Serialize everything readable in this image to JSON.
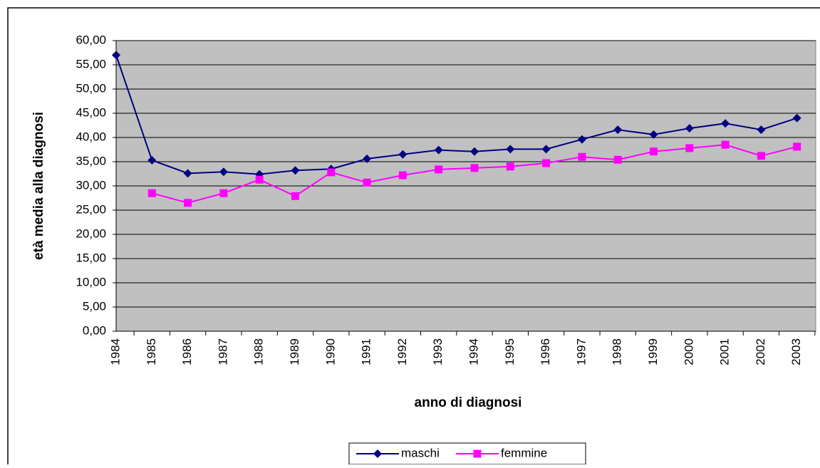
{
  "chart_data": {
    "type": "line",
    "y_label": "età media alla diagnosi",
    "x_label": "anno di diagnosi",
    "categories": [
      "1984",
      "1985",
      "1986",
      "1987",
      "1988",
      "1989",
      "1990",
      "1991",
      "1992",
      "1993",
      "1994",
      "1995",
      "1996",
      "1997",
      "1998",
      "1999",
      "2000",
      "2001",
      "2002",
      "2003"
    ],
    "series": [
      {
        "name": "maschi",
        "color": "#000080",
        "marker": "diamond",
        "values": [
          57.0,
          35.3,
          32.6,
          32.9,
          32.4,
          33.2,
          33.5,
          35.6,
          36.5,
          37.4,
          37.1,
          37.6,
          37.6,
          39.6,
          41.6,
          40.6,
          41.9,
          42.9,
          41.6,
          44.0
        ]
      },
      {
        "name": "femmine",
        "color": "#ff00ff",
        "marker": "square",
        "values": [
          null,
          28.5,
          26.5,
          28.5,
          31.3,
          27.9,
          32.8,
          30.7,
          32.2,
          33.4,
          33.7,
          34.0,
          34.7,
          36.0,
          35.4,
          37.1,
          37.8,
          38.5,
          36.2,
          38.1
        ]
      }
    ],
    "ylim": [
      0,
      60
    ],
    "yticks": [
      {
        "value": 0,
        "label": "0,00"
      },
      {
        "value": 5,
        "label": "5,00"
      },
      {
        "value": 10,
        "label": "10,00"
      },
      {
        "value": 15,
        "label": "15,00"
      },
      {
        "value": 20,
        "label": "20,00"
      },
      {
        "value": 25,
        "label": "25,00"
      },
      {
        "value": 30,
        "label": "30,00"
      },
      {
        "value": 35,
        "label": "35,00"
      },
      {
        "value": 40,
        "label": "40,00"
      },
      {
        "value": 45,
        "label": "45,00"
      },
      {
        "value": 50,
        "label": "50,00"
      },
      {
        "value": 55,
        "label": "55,00"
      },
      {
        "value": 60,
        "label": "60,00"
      }
    ],
    "grid": true,
    "legend": "bottom"
  }
}
